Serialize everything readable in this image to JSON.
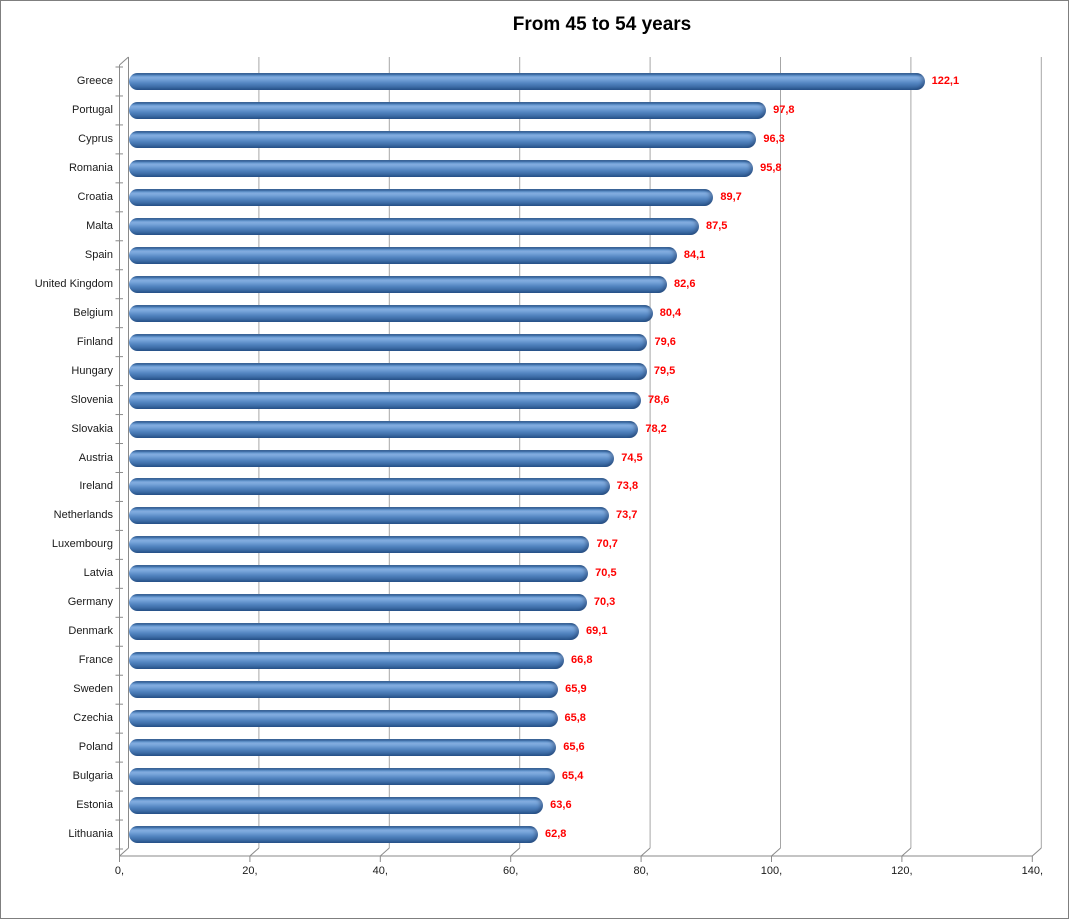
{
  "window": {
    "background": "#FFFFFF",
    "border_color": "#7F7F7F"
  },
  "chart_data": {
    "type": "bar",
    "orientation": "horizontal",
    "title": "From 45 to 54 years",
    "xlabel": "",
    "ylabel": "",
    "xlim": [
      0,
      140
    ],
    "grid": true,
    "legend": "none",
    "categories": [
      "Greece",
      "Portugal",
      "Cyprus",
      "Romania",
      "Croatia",
      "Malta",
      "Spain",
      "United Kingdom",
      "Belgium",
      "Finland",
      "Hungary",
      "Slovenia",
      "Slovakia",
      "Austria",
      "Ireland",
      "Netherlands",
      "Luxembourg",
      "Latvia",
      "Germany",
      "Denmark",
      "France",
      "Sweden",
      "Czechia",
      "Poland",
      "Bulgaria",
      "Estonia",
      "Lithuania"
    ],
    "values": [
      122.1,
      97.8,
      96.3,
      95.8,
      89.7,
      87.5,
      84.1,
      82.6,
      80.4,
      79.6,
      79.5,
      78.6,
      78.2,
      74.5,
      73.8,
      73.7,
      70.7,
      70.5,
      70.3,
      69.1,
      66.8,
      65.9,
      65.8,
      65.6,
      65.4,
      63.6,
      62.8
    ],
    "value_labels": [
      "122,1",
      "97,8",
      "96,3",
      "95,8",
      "89,7",
      "87,5",
      "84,1",
      "82,6",
      "80,4",
      "79,6",
      "79,5",
      "78,6",
      "78,2",
      "74,5",
      "73,8",
      "73,7",
      "70,7",
      "70,5",
      "70,3",
      "69,1",
      "66,8",
      "65,9",
      "65,8",
      "65,6",
      "65,4",
      "63,6",
      "62,8"
    ],
    "x_axis": {
      "tick_values": [
        0,
        20,
        40,
        60,
        80,
        100,
        120,
        140
      ],
      "tick_labels": [
        "0,",
        "20,",
        "40,",
        "60,",
        "80,",
        "100,",
        "120,",
        "140,"
      ]
    },
    "style": {
      "bar_color": "#4F81BD",
      "bar_highlight": "#83ACDF",
      "bar_shadow": "#2B5892",
      "value_label_color": "#FF0000",
      "gridline_color": "#A6A6A6",
      "axis_color": "#8A8A8A",
      "text_color": "#1A1A1A",
      "title_color": "#000000"
    }
  }
}
